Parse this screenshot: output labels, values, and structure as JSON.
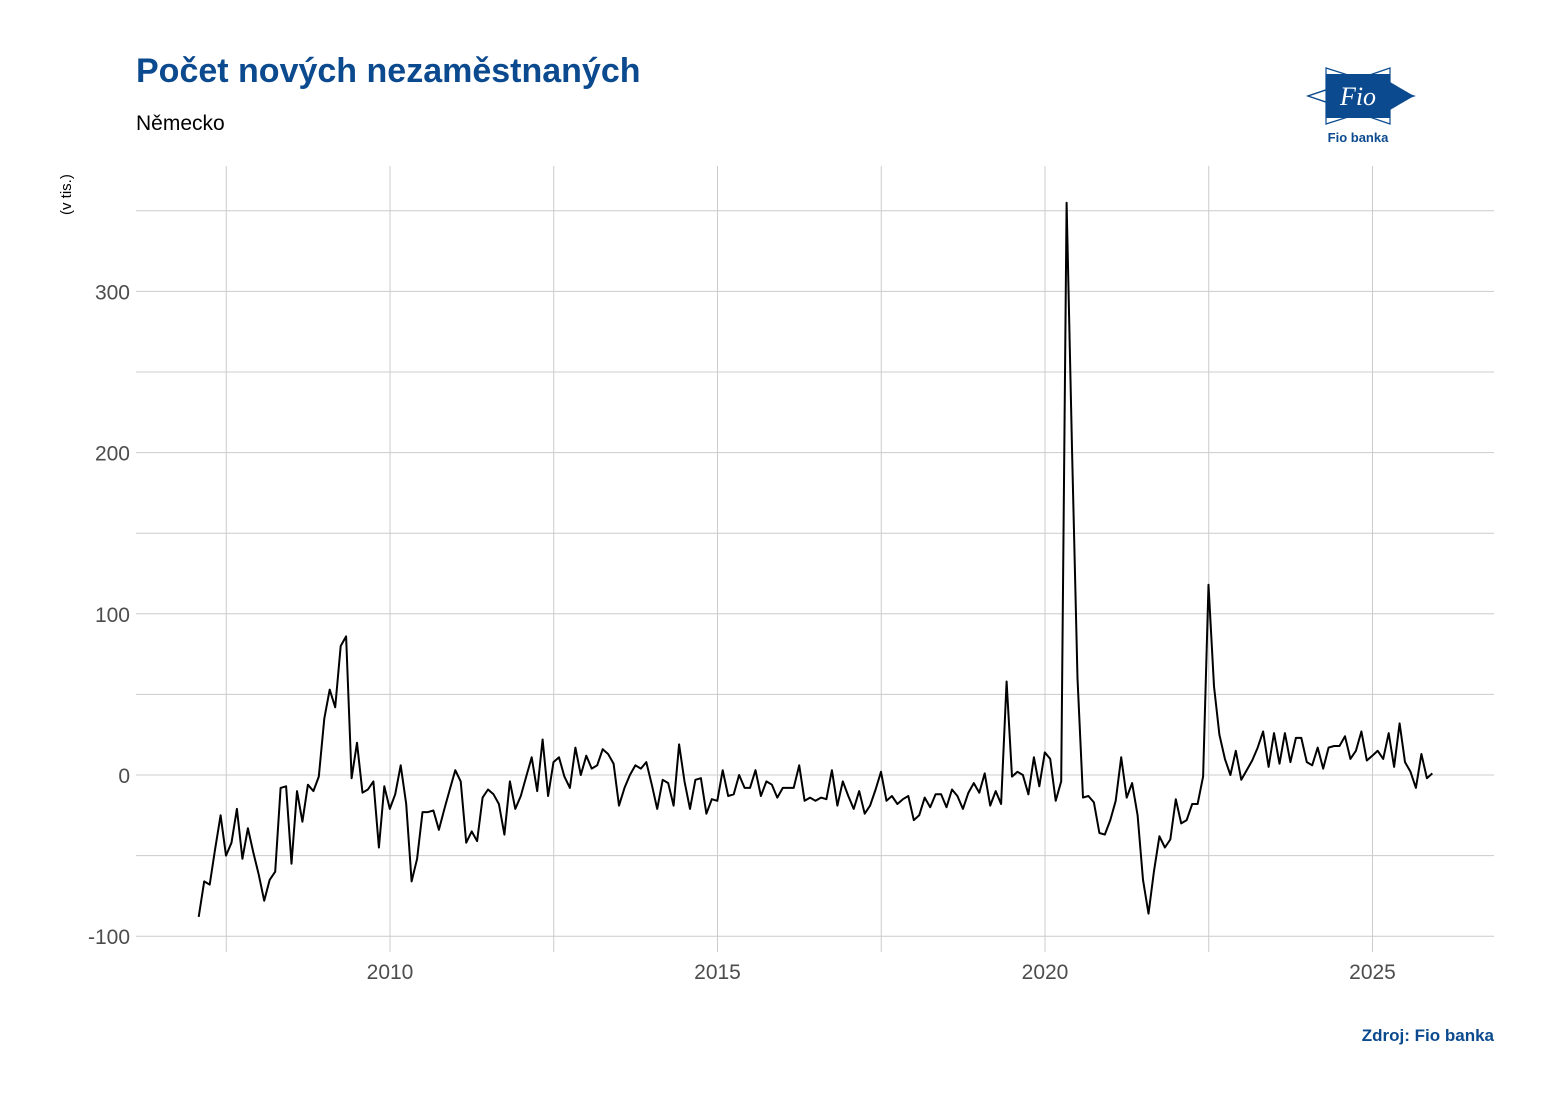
{
  "header": {
    "title": "Počet nových nezaměstnaných",
    "subtitle": "Německo"
  },
  "logo": {
    "name": "Fio",
    "caption": "Fio banka",
    "color": "#0b4a8e"
  },
  "footer": {
    "source": "Zdroj: Fio banka"
  },
  "chart_data": {
    "type": "line",
    "title": "Počet nových nezaměstnaných",
    "subtitle": "Německo",
    "xlabel": "",
    "ylabel": "(v tis.)",
    "x_ticks": [
      "2010",
      "2015",
      "2020",
      "2025"
    ],
    "y_ticks": [
      "-100",
      "0",
      "100",
      "200",
      "300"
    ],
    "xlim": [
      2006.6,
      2026.8
    ],
    "ylim": [
      -110,
      375
    ],
    "grid": true,
    "legend": "none",
    "line_color": "#000000",
    "x_start": 2007.08,
    "x_step_months": 1,
    "series": [
      {
        "name": "Německo",
        "values": [
          -88,
          -66,
          -68,
          -46,
          -25,
          -50,
          -42,
          -21,
          -52,
          -33,
          -48,
          -62,
          -78,
          -65,
          -60,
          -8,
          -7,
          -55,
          -10,
          -29,
          -6,
          -10,
          -1,
          35,
          53,
          42,
          80,
          86,
          -2,
          20,
          -11,
          -9,
          -4,
          -45,
          -7,
          -21,
          -12,
          6,
          -18,
          -66,
          -52,
          -23,
          -23,
          -22,
          -34,
          -21,
          -9,
          3,
          -4,
          -42,
          -35,
          -41,
          -14,
          -9,
          -12,
          -18,
          -37,
          -4,
          -21,
          -13,
          -1,
          11,
          -10,
          22,
          -13,
          8,
          11,
          -1,
          -8,
          17,
          0,
          12,
          4,
          6,
          16,
          13,
          7,
          -19,
          -8,
          0,
          6,
          4,
          8,
          -6,
          -21,
          -3,
          -5,
          -19,
          19,
          -4,
          -21,
          -3,
          -2,
          -24,
          -15,
          -16,
          3,
          -13,
          -12,
          0,
          -8,
          -8,
          3,
          -13,
          -4,
          -6,
          -14,
          -8,
          -8,
          -8,
          6,
          -16,
          -14,
          -16,
          -14,
          -15,
          3,
          -19,
          -4,
          -13,
          -21,
          -10,
          -24,
          -19,
          -9,
          2,
          -16,
          -13,
          -18,
          -15,
          -13,
          -28,
          -25,
          -14,
          -20,
          -12,
          -12,
          -20,
          -9,
          -13,
          -21,
          -11,
          -5,
          -11,
          1,
          -19,
          -10,
          -18,
          58,
          -1,
          2,
          0,
          -12,
          11,
          -7,
          14,
          10,
          -16,
          -4,
          355,
          200,
          60,
          -14,
          -13,
          -17,
          -36,
          -37,
          -28,
          -16,
          11,
          -14,
          -5,
          -25,
          -65,
          -86,
          -60,
          -38,
          -45,
          -40,
          -15,
          -30,
          -28,
          -18,
          -18,
          -1,
          118,
          55,
          25,
          10,
          0,
          15,
          -3,
          3,
          9,
          17,
          27,
          5,
          26,
          7,
          26,
          8,
          23,
          23,
          8,
          6,
          17,
          4,
          17,
          18,
          18,
          24,
          10,
          15,
          27,
          9,
          12,
          15,
          10,
          26,
          5,
          32,
          8,
          2,
          -8,
          13,
          -2,
          1
        ]
      }
    ]
  }
}
